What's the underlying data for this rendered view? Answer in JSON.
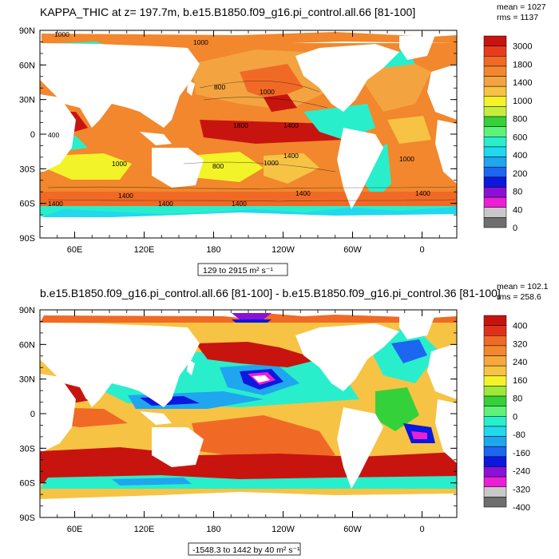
{
  "chart_data": [
    {
      "type": "heatmap",
      "title_left": "KAPPA_THIC at z= 197.7m, b.e15.B1850.f09_g16.pi_control.all.66 [81-100]",
      "stats": [
        "mean = 1027",
        "rms = 1137"
      ],
      "range_label": "129 to 2915 m² s⁻¹",
      "x_ticks": [
        "60E",
        "120E",
        "180",
        "120W",
        "60W",
        "0"
      ],
      "y_ticks": [
        "90N",
        "60N",
        "30N",
        "0",
        "30S",
        "60S",
        "90S"
      ],
      "colorbar_levels": [
        "3000",
        "1800",
        "1400",
        "1000",
        "800",
        "600",
        "400",
        "200",
        "80",
        "40",
        "0"
      ],
      "colorbar_colors": [
        "#c8140f",
        "#e83c1e",
        "#f06a26",
        "#f2872d",
        "#f3a440",
        "#f6c344",
        "#f3f32a",
        "#c6ee3c",
        "#35d13a",
        "#5ff279",
        "#29eecb",
        "#21d8ee",
        "#1fa6ef",
        "#1c66f0",
        "#0b18dd",
        "#8a12d7",
        "#ea1fd6",
        "#c8c8c8",
        "#6e6e6e"
      ],
      "contour_labels": [
        "1000",
        "1000",
        "800",
        "1000",
        "1800",
        "1400",
        "400",
        "1000",
        "800",
        "1000",
        "1400",
        "1000",
        "1400",
        "1400",
        "1400",
        "1400",
        "1400",
        "1400"
      ]
    },
    {
      "type": "heatmap",
      "title_left": "b.e15.B1850.f09_g16.pi_control.all.66 [81-100] - b.e15.B1850.f09_g16.pi_control.36 [81-100]",
      "stats": [
        "mean = 102.1",
        "rms = 258.6"
      ],
      "range_label": "-1548.3 to 1442 by 40 m² s⁻¹",
      "x_ticks": [
        "60E",
        "120E",
        "180",
        "120W",
        "60W",
        "0"
      ],
      "y_ticks": [
        "90N",
        "60N",
        "30N",
        "0",
        "30S",
        "60S",
        "90S"
      ],
      "colorbar_levels": [
        "400",
        "320",
        "240",
        "160",
        "80",
        "0",
        "-80",
        "-160",
        "-240",
        "-320",
        "-400"
      ],
      "colorbar_colors": [
        "#c8140f",
        "#e0301c",
        "#f06a26",
        "#f2872d",
        "#f6a93c",
        "#f6c344",
        "#f3f32a",
        "#9ee83a",
        "#35d13a",
        "#5ff279",
        "#29eecb",
        "#21d8ee",
        "#1fa6ef",
        "#1c66f0",
        "#0b18dd",
        "#8a12d7",
        "#ea1fd6",
        "#c8c8c8",
        "#6e6e6e"
      ]
    }
  ]
}
